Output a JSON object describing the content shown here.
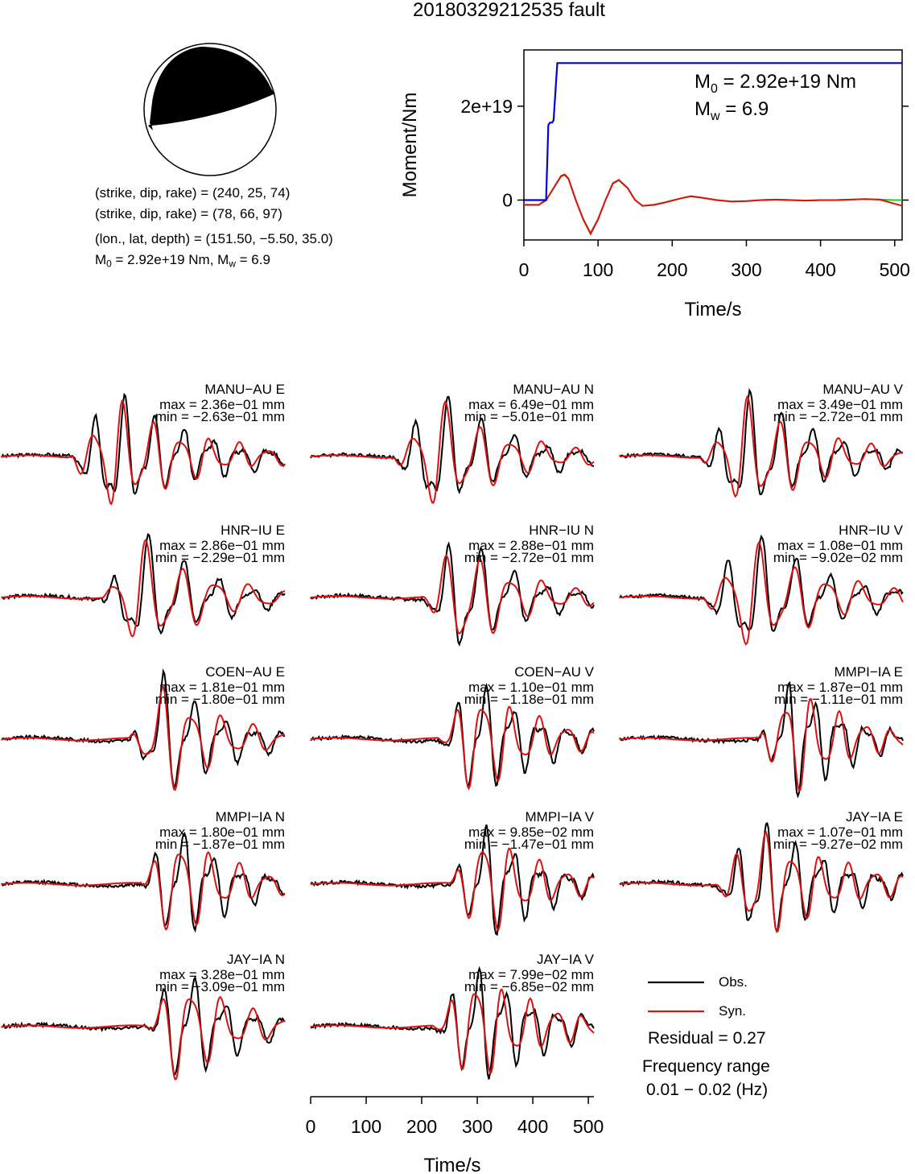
{
  "title": "20180329212535 fault",
  "focal_mechanism": {
    "plane1": "(strike, dip, rake) = (240, 25, 74)",
    "plane2": "(strike, dip, rake) = (78, 66, 97)",
    "location": "(lon., lat, depth) = (151.50, −5.50, 35.0)",
    "m0_prefix": "M",
    "m0_sub": "0",
    "m0_rest": " = 2.92e+19 Nm, M",
    "mw_sub": "w",
    "mw_rest": " = 6.9"
  },
  "colors": {
    "observed": "#000000",
    "synthetic": "#dd1111",
    "moment_rate_green": "#22cc22",
    "cumulative_blue": "#0000dd"
  },
  "chart_data": [
    {
      "type": "line",
      "title": "",
      "xlabel": "Time/s",
      "ylabel": "Moment/Nm",
      "xlim": [
        0,
        510
      ],
      "ylim": [
        -8.5e+18,
        3.2e+19
      ],
      "x_ticks": [
        "0",
        "100",
        "200",
        "300",
        "400",
        "500"
      ],
      "y_ticks": [
        {
          "value": 0,
          "label": "0"
        },
        {
          "value": 2e+19,
          "label": "2e+19"
        }
      ],
      "annotation": {
        "m0_label": "M",
        "m0_sub": "0",
        "m0_value": " = 2.92e+19 Nm",
        "mw_label": "M",
        "mw_sub": "w",
        "mw_value": " = 6.9"
      },
      "cumulative_moment": {
        "x": [
          0,
          30,
          33,
          35,
          38,
          40,
          45,
          50,
          55,
          510
        ],
        "y": [
          0,
          0,
          1.6e+19,
          1.65e+19,
          1.65e+19,
          1.7e+19,
          2.92e+19,
          2.92e+19,
          2.92e+19,
          2.92e+19
        ]
      },
      "moment_rate": {
        "x": [
          0,
          20,
          30,
          40,
          50,
          55,
          60,
          70,
          80,
          90,
          100,
          110,
          120,
          128,
          140,
          150,
          160,
          175,
          190,
          210,
          225,
          240,
          260,
          280,
          300,
          320,
          340,
          360,
          380,
          400,
          420,
          440,
          460,
          480,
          500,
          510
        ],
        "y": [
          -1e+18,
          -1e+18,
          0,
          2.5e+18,
          5e+18,
          5.3e+18,
          4.5e+18,
          0,
          -4e+18,
          -7e+18,
          -4e+18,
          0,
          3.5e+18,
          4.2e+18,
          2.5e+18,
          0,
          -1.2e+18,
          -1e+18,
          -5e+17,
          3e+17,
          8e+17,
          5e+17,
          0,
          -3e+17,
          -2e+17,
          0,
          1e+17,
          0,
          -1e+17,
          0,
          0,
          1e+17,
          2e+17,
          1e+17,
          0,
          0
        ]
      }
    },
    {
      "type": "line",
      "title": "",
      "xlabel": "Time/s",
      "xlim": [
        0,
        510
      ],
      "x_ticks": [
        "0",
        "100",
        "200",
        "300",
        "400",
        "500"
      ],
      "legend": {
        "entries": [
          "Obs.",
          "Syn."
        ],
        "placement": "bottom-right"
      },
      "residual": "Residual = 0.27",
      "frequency_range_label": "Frequency range",
      "frequency_range_value": "0.01 − 0.02 (Hz)",
      "series": [
        {
          "name": "MANU−AU E",
          "max": "max = 2.36e−01 mm",
          "min": "min = −2.63e−01 mm",
          "amplitude": 1.0,
          "onset": 120,
          "dominant_period": 52,
          "duration": 330
        },
        {
          "name": "MANU−AU N",
          "max": "max = 6.49e−01 mm",
          "min": "min = −5.01e−01 mm",
          "amplitude": 1.0,
          "onset": 150,
          "dominant_period": 58,
          "duration": 300
        },
        {
          "name": "MANU−AU V",
          "max": "max = 3.49e−01 mm",
          "min": "min = −2.72e−01 mm",
          "amplitude": 1.0,
          "onset": 145,
          "dominant_period": 55,
          "duration": 320
        },
        {
          "name": "HNR−IU E",
          "max": "max = 2.86e−01 mm",
          "min": "min = −2.29e−01 mm",
          "amplitude": 1.0,
          "onset": 180,
          "dominant_period": 62,
          "duration": 280
        },
        {
          "name": "HNR−IU N",
          "max": "max = 2.88e−01 mm",
          "min": "min = −2.72e−01 mm",
          "amplitude": 1.0,
          "onset": 200,
          "dominant_period": 58,
          "duration": 260
        },
        {
          "name": "HNR−IU V",
          "max": "max = 1.08e−01 mm",
          "min": "min = −9.02e−02 mm",
          "amplitude": 1.0,
          "onset": 150,
          "dominant_period": 60,
          "duration": 330
        },
        {
          "name": "COEN−AU E",
          "max": "max = 1.81e−01 mm",
          "min": "min = −1.80e−01 mm",
          "amplitude": 1.0,
          "onset": 230,
          "dominant_period": 55,
          "duration": 250
        },
        {
          "name": "COEN−AU V",
          "max": "max = 1.10e−01 mm",
          "min": "min = −1.18e−01 mm",
          "amplitude": 1.0,
          "onset": 230,
          "dominant_period": 50,
          "duration": 260
        },
        {
          "name": "MMPI−IA E",
          "max": "max = 1.87e−01 mm",
          "min": "min = −1.11e−01 mm",
          "amplitude": 1.0,
          "onset": 250,
          "dominant_period": 48,
          "duration": 240
        },
        {
          "name": "MMPI−IA N",
          "max": "max = 1.80e−01 mm",
          "min": "min = −1.87e−01 mm",
          "amplitude": 1.0,
          "onset": 250,
          "dominant_period": 52,
          "duration": 240
        },
        {
          "name": "MMPI−IA V",
          "max": "max = 9.85e−02 mm",
          "min": "min = −1.47e−01 mm",
          "amplitude": 1.0,
          "onset": 250,
          "dominant_period": 50,
          "duration": 240
        },
        {
          "name": "JAY−IA E",
          "max": "max = 1.07e−01 mm",
          "min": "min = −9.27e−02 mm",
          "amplitude": 1.0,
          "onset": 170,
          "dominant_period": 50,
          "duration": 330
        },
        {
          "name": "JAY−IA N",
          "max": "max = 3.28e−01 mm",
          "min": "min = −3.09e−01 mm",
          "amplitude": 1.0,
          "onset": 260,
          "dominant_period": 55,
          "duration": 240
        },
        {
          "name": "JAY−IA V",
          "max": "max = 7.99e−02 mm",
          "min": "min = −6.85e−02 mm",
          "amplitude": 1.0,
          "onset": 220,
          "dominant_period": 48,
          "duration": 290
        }
      ]
    }
  ]
}
